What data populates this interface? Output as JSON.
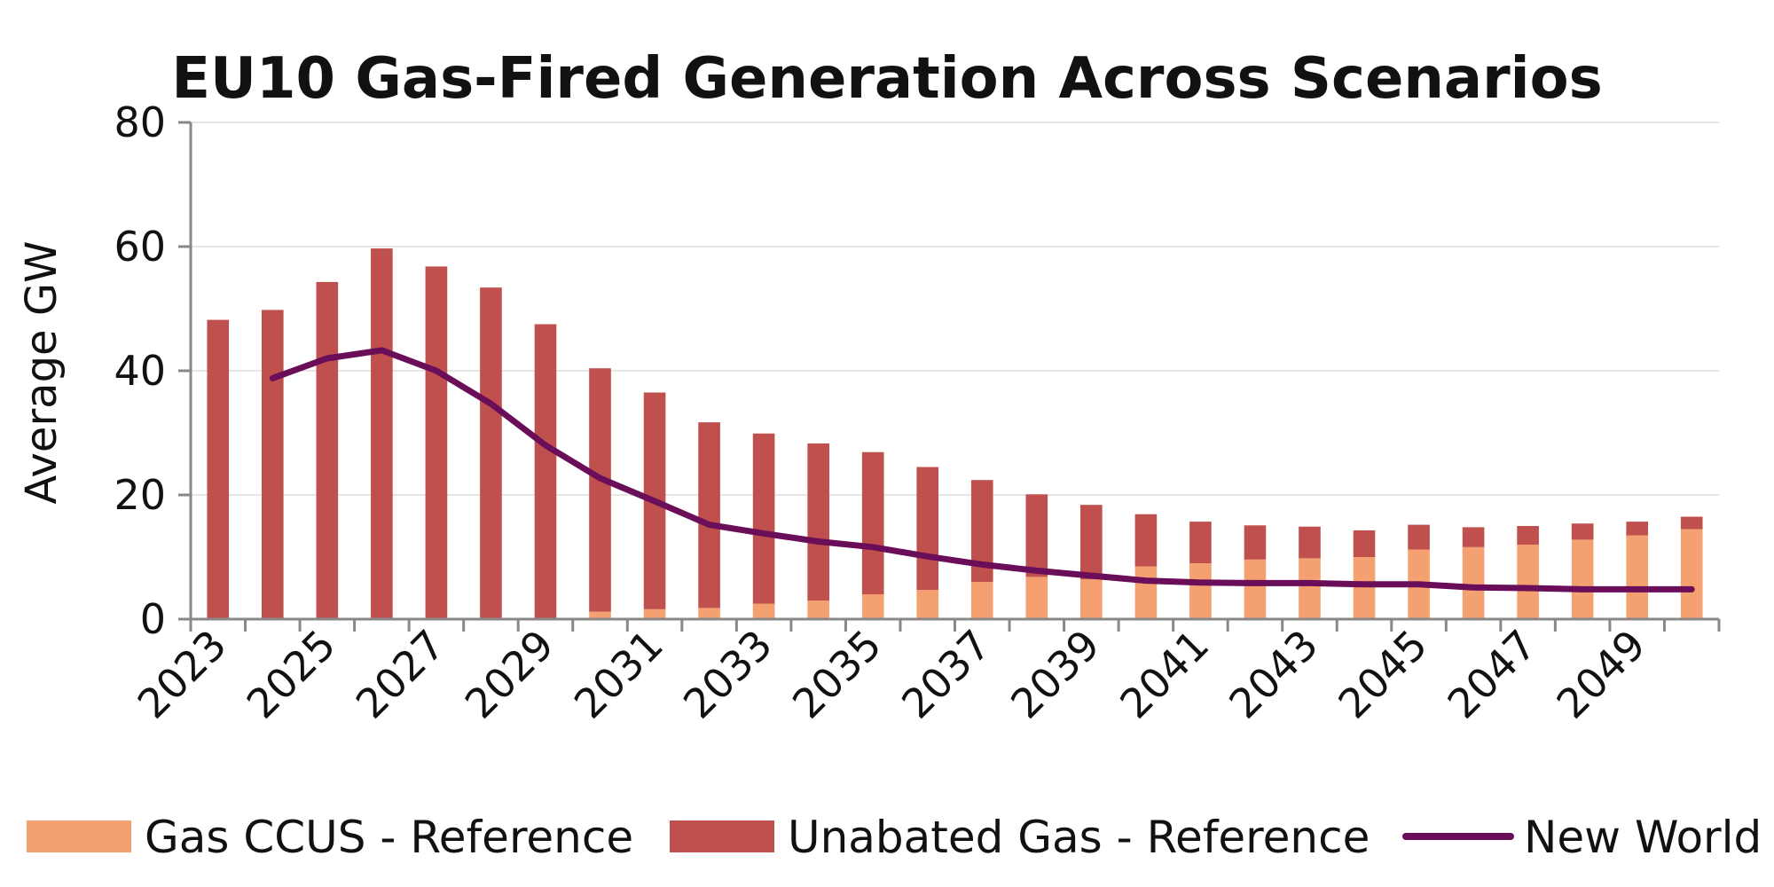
{
  "chart_data": {
    "type": "bar",
    "stacked": true,
    "title": "EU10 Gas-Fired Generation Across Scenarios",
    "xlabel": "",
    "ylabel": "Average GW",
    "ylim": [
      0,
      80
    ],
    "yticks": [
      "0",
      "20",
      "40",
      "60",
      "80"
    ],
    "grid": true,
    "legend_position": "bottom",
    "categories": [
      "2023",
      "2024",
      "2025",
      "2026",
      "2027",
      "2028",
      "2029",
      "2030",
      "2031",
      "2032",
      "2033",
      "2034",
      "2035",
      "2036",
      "2037",
      "2038",
      "2039",
      "2040",
      "2041",
      "2042",
      "2043",
      "2044",
      "2045",
      "2046",
      "2047",
      "2048",
      "2049",
      "2050"
    ],
    "xtick_labels": [
      "2023",
      "2025",
      "2027",
      "2029",
      "2031",
      "2033",
      "2035",
      "2037",
      "2039",
      "2041",
      "2043",
      "2045",
      "2047",
      "2049"
    ],
    "series": [
      {
        "name": "Gas CCUS - Reference",
        "kind": "bar",
        "color": "#F4A070",
        "values": [
          0,
          0,
          0,
          0,
          0,
          0,
          0,
          1.2,
          1.6,
          1.8,
          2.5,
          3.0,
          4.0,
          4.7,
          6.0,
          6.8,
          6.4,
          8.5,
          9.0,
          9.6,
          9.8,
          10.0,
          11.2,
          11.6,
          12.0,
          12.8,
          13.5,
          14.5
        ]
      },
      {
        "name": "Unabated Gas - Reference",
        "kind": "bar",
        "color": "#C0504D",
        "values": [
          48.2,
          49.8,
          54.3,
          59.7,
          56.8,
          53.4,
          47.5,
          39.2,
          34.9,
          29.9,
          27.4,
          25.3,
          22.9,
          19.8,
          16.4,
          13.3,
          12.0,
          8.4,
          6.7,
          5.5,
          5.1,
          4.3,
          4.0,
          3.2,
          3.0,
          2.6,
          2.2,
          2.0
        ]
      },
      {
        "name": "New World",
        "kind": "line",
        "color": "#6B0E5A",
        "values": [
          null,
          38.8,
          42.0,
          43.3,
          40.0,
          34.7,
          28.0,
          22.7,
          19.0,
          15.2,
          13.8,
          12.5,
          11.6,
          10.1,
          8.8,
          7.8,
          7.0,
          6.2,
          5.9,
          5.8,
          5.8,
          5.6,
          5.6,
          5.1,
          5.0,
          4.8,
          4.8,
          4.8
        ]
      }
    ]
  }
}
